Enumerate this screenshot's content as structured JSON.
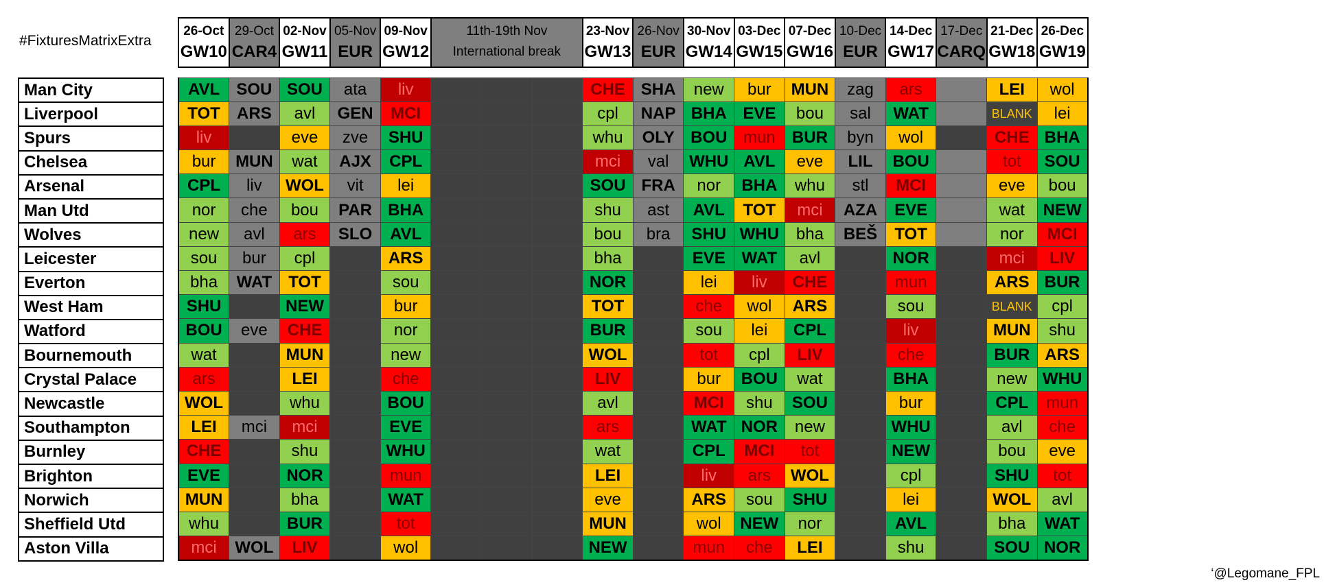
{
  "title": "#FixturesMatrixExtra",
  "credit": "‘@Legomane_FPL",
  "legend_colors": {
    "dark_green": "#00b050",
    "light_green": "#92d050",
    "yellow": "#ffc000",
    "red": "#ff0000",
    "dark_red": "#c00000",
    "grey": "#7f7f7f",
    "dark_grey": "#404040"
  },
  "columns": [
    {
      "date": "26-Oct",
      "gw": "GW10",
      "kind": "gw"
    },
    {
      "date": "29-Oct",
      "gw": "CAR4",
      "kind": "cup"
    },
    {
      "date": "02-Nov",
      "gw": "GW11",
      "kind": "gw"
    },
    {
      "date": "05-Nov",
      "gw": "EUR",
      "kind": "cup"
    },
    {
      "date": "09-Nov",
      "gw": "GW12",
      "kind": "gw"
    },
    {
      "date": "11th-19th Nov",
      "gw": "International break",
      "kind": "break"
    },
    {
      "date": "23-Nov",
      "gw": "GW13",
      "kind": "gw"
    },
    {
      "date": "26-Nov",
      "gw": "EUR",
      "kind": "cup"
    },
    {
      "date": "30-Nov",
      "gw": "GW14",
      "kind": "gw"
    },
    {
      "date": "03-Dec",
      "gw": "GW15",
      "kind": "gw"
    },
    {
      "date": "07-Dec",
      "gw": "GW16",
      "kind": "gw"
    },
    {
      "date": "10-Dec",
      "gw": "EUR",
      "kind": "cup"
    },
    {
      "date": "14-Dec",
      "gw": "GW17",
      "kind": "gw"
    },
    {
      "date": "17-Dec",
      "gw": "CARQ",
      "kind": "cup"
    },
    {
      "date": "21-Dec",
      "gw": "GW18",
      "kind": "gw"
    },
    {
      "date": "26-Dec",
      "gw": "GW19",
      "kind": "gw"
    }
  ],
  "teams": [
    {
      "name": "Man City",
      "cells": [
        [
          "AVL",
          "dg"
        ],
        [
          "SOU",
          "gr"
        ],
        [
          "SOU",
          "dg"
        ],
        [
          "ata",
          "gr"
        ],
        [
          "liv",
          "dr"
        ],
        [
          "LEI",
          "yl"
        ],
        [
          "wol",
          "yl"
        ],
        [
          "CHE",
          "rd"
        ],
        [
          "SHA",
          "gr"
        ],
        [
          "new",
          "lg"
        ],
        [
          "bur",
          "yl"
        ],
        [
          "MUN",
          "yl"
        ],
        [
          "zag",
          "gr"
        ],
        [
          "ars",
          "rd"
        ],
        [
          "",
          "gr"
        ]
      ]
    },
    {
      "name": "Liverpool",
      "cells": [
        [
          "TOT",
          "yl"
        ],
        [
          "ARS",
          "gr"
        ],
        [
          "avl",
          "lg"
        ],
        [
          "GEN",
          "gr"
        ],
        [
          "MCI",
          "rd"
        ],
        [
          "BLANK",
          "bl"
        ],
        [
          "lei",
          "yl"
        ],
        [
          "cpl",
          "lg"
        ],
        [
          "NAP",
          "gr"
        ],
        [
          "BHA",
          "dg"
        ],
        [
          "EVE",
          "dg"
        ],
        [
          "bou",
          "lg"
        ],
        [
          "sal",
          "gr"
        ],
        [
          "WAT",
          "dg"
        ],
        [
          "",
          "gr"
        ]
      ]
    },
    {
      "name": "Spurs",
      "cells": [
        [
          "liv",
          "dr"
        ],
        [
          "",
          "dk"
        ],
        [
          "eve",
          "yl"
        ],
        [
          "zve",
          "gr"
        ],
        [
          "SHU",
          "dg"
        ],
        [
          "CHE",
          "rd"
        ],
        [
          "BHA",
          "dg"
        ],
        [
          "whu",
          "lg"
        ],
        [
          "OLY",
          "gr"
        ],
        [
          "BOU",
          "dg"
        ],
        [
          "mun",
          "rd"
        ],
        [
          "BUR",
          "dg"
        ],
        [
          "byn",
          "gr"
        ],
        [
          "wol",
          "yl"
        ],
        [
          "",
          "dk"
        ]
      ]
    },
    {
      "name": "Chelsea",
      "cells": [
        [
          "bur",
          "yl"
        ],
        [
          "MUN",
          "gr"
        ],
        [
          "wat",
          "lg"
        ],
        [
          "AJX",
          "gr"
        ],
        [
          "CPL",
          "dg"
        ],
        [
          "tot",
          "rd"
        ],
        [
          "SOU",
          "dg"
        ],
        [
          "mci",
          "dr"
        ],
        [
          "val",
          "gr"
        ],
        [
          "WHU",
          "dg"
        ],
        [
          "AVL",
          "dg"
        ],
        [
          "eve",
          "yl"
        ],
        [
          "LIL",
          "gr"
        ],
        [
          "BOU",
          "dg"
        ],
        [
          "",
          "gr"
        ]
      ]
    },
    {
      "name": "Arsenal",
      "cells": [
        [
          "CPL",
          "dg"
        ],
        [
          "liv",
          "gr"
        ],
        [
          "WOL",
          "yl"
        ],
        [
          "vit",
          "gr"
        ],
        [
          "lei",
          "yl"
        ],
        [
          "eve",
          "yl"
        ],
        [
          "bou",
          "lg"
        ],
        [
          "SOU",
          "dg"
        ],
        [
          "FRA",
          "gr"
        ],
        [
          "nor",
          "lg"
        ],
        [
          "BHA",
          "dg"
        ],
        [
          "whu",
          "lg"
        ],
        [
          "stl",
          "gr"
        ],
        [
          "MCI",
          "rd"
        ],
        [
          "",
          "gr"
        ]
      ]
    },
    {
      "name": "Man Utd",
      "cells": [
        [
          "nor",
          "lg"
        ],
        [
          "che",
          "gr"
        ],
        [
          "bou",
          "lg"
        ],
        [
          "PAR",
          "gr"
        ],
        [
          "BHA",
          "dg"
        ],
        [
          "wat",
          "lg"
        ],
        [
          "NEW",
          "dg"
        ],
        [
          "shu",
          "lg"
        ],
        [
          "ast",
          "gr"
        ],
        [
          "AVL",
          "dg"
        ],
        [
          "TOT",
          "yl"
        ],
        [
          "mci",
          "dr"
        ],
        [
          "AZA",
          "gr"
        ],
        [
          "EVE",
          "dg"
        ],
        [
          "",
          "gr"
        ]
      ]
    },
    {
      "name": "Wolves",
      "cells": [
        [
          "new",
          "lg"
        ],
        [
          "avl",
          "gr"
        ],
        [
          "ars",
          "rd"
        ],
        [
          "SLO",
          "gr"
        ],
        [
          "AVL",
          "dg"
        ],
        [
          "nor",
          "lg"
        ],
        [
          "MCI",
          "rd"
        ],
        [
          "bou",
          "lg"
        ],
        [
          "bra",
          "gr"
        ],
        [
          "SHU",
          "dg"
        ],
        [
          "WHU",
          "dg"
        ],
        [
          "bha",
          "lg"
        ],
        [
          "BEŠ",
          "gr"
        ],
        [
          "TOT",
          "yl"
        ],
        [
          "",
          "gr"
        ]
      ]
    },
    {
      "name": "Leicester",
      "cells": [
        [
          "sou",
          "lg"
        ],
        [
          "bur",
          "gr"
        ],
        [
          "cpl",
          "lg"
        ],
        [
          "",
          "dk"
        ],
        [
          "ARS",
          "yl"
        ],
        [
          "mci",
          "dr"
        ],
        [
          "LIV",
          "rd"
        ],
        [
          "bha",
          "lg"
        ],
        [
          "",
          "dk"
        ],
        [
          "EVE",
          "dg"
        ],
        [
          "WAT",
          "dg"
        ],
        [
          "avl",
          "lg"
        ],
        [
          "",
          "dk"
        ],
        [
          "NOR",
          "dg"
        ],
        [
          "",
          "dk"
        ]
      ]
    },
    {
      "name": "Everton",
      "cells": [
        [
          "bha",
          "lg"
        ],
        [
          "WAT",
          "gr"
        ],
        [
          "TOT",
          "yl"
        ],
        [
          "",
          "dk"
        ],
        [
          "sou",
          "lg"
        ],
        [
          "ARS",
          "yl"
        ],
        [
          "BUR",
          "dg"
        ],
        [
          "NOR",
          "dg"
        ],
        [
          "",
          "dk"
        ],
        [
          "lei",
          "yl"
        ],
        [
          "liv",
          "dr"
        ],
        [
          "CHE",
          "rd"
        ],
        [
          "",
          "dk"
        ],
        [
          "mun",
          "rd"
        ],
        [
          "",
          "dk"
        ]
      ]
    },
    {
      "name": "West Ham",
      "cells": [
        [
          "SHU",
          "dg"
        ],
        [
          "",
          "dk"
        ],
        [
          "NEW",
          "dg"
        ],
        [
          "",
          "dk"
        ],
        [
          "bur",
          "yl"
        ],
        [
          "BLANK",
          "bl"
        ],
        [
          "cpl",
          "lg"
        ],
        [
          "TOT",
          "yl"
        ],
        [
          "",
          "dk"
        ],
        [
          "che",
          "rd"
        ],
        [
          "wol",
          "yl"
        ],
        [
          "ARS",
          "yl"
        ],
        [
          "",
          "dk"
        ],
        [
          "sou",
          "lg"
        ],
        [
          "",
          "dk"
        ]
      ]
    },
    {
      "name": "Watford",
      "cells": [
        [
          "BOU",
          "dg"
        ],
        [
          "eve",
          "gr"
        ],
        [
          "CHE",
          "rd"
        ],
        [
          "",
          "dk"
        ],
        [
          "nor",
          "lg"
        ],
        [
          "MUN",
          "yl"
        ],
        [
          "shu",
          "lg"
        ],
        [
          "BUR",
          "dg"
        ],
        [
          "",
          "dk"
        ],
        [
          "sou",
          "lg"
        ],
        [
          "lei",
          "yl"
        ],
        [
          "CPL",
          "dg"
        ],
        [
          "",
          "dk"
        ],
        [
          "liv",
          "dr"
        ],
        [
          "",
          "dk"
        ]
      ]
    },
    {
      "name": "Bournemouth",
      "cells": [
        [
          "wat",
          "lg"
        ],
        [
          "",
          "dk"
        ],
        [
          "MUN",
          "yl"
        ],
        [
          "",
          "dk"
        ],
        [
          "new",
          "lg"
        ],
        [
          "BUR",
          "dg"
        ],
        [
          "ARS",
          "yl"
        ],
        [
          "WOL",
          "yl"
        ],
        [
          "",
          "dk"
        ],
        [
          "tot",
          "rd"
        ],
        [
          "cpl",
          "lg"
        ],
        [
          "LIV",
          "rd"
        ],
        [
          "",
          "dk"
        ],
        [
          "che",
          "rd"
        ],
        [
          "",
          "dk"
        ]
      ]
    },
    {
      "name": "Crystal Palace",
      "cells": [
        [
          "ars",
          "rd"
        ],
        [
          "",
          "dk"
        ],
        [
          "LEI",
          "yl"
        ],
        [
          "",
          "dk"
        ],
        [
          "che",
          "rd"
        ],
        [
          "new",
          "lg"
        ],
        [
          "WHU",
          "dg"
        ],
        [
          "LIV",
          "rd"
        ],
        [
          "",
          "dk"
        ],
        [
          "bur",
          "yl"
        ],
        [
          "BOU",
          "dg"
        ],
        [
          "wat",
          "lg"
        ],
        [
          "",
          "dk"
        ],
        [
          "BHA",
          "dg"
        ],
        [
          "",
          "dk"
        ]
      ]
    },
    {
      "name": "Newcastle",
      "cells": [
        [
          "WOL",
          "yl"
        ],
        [
          "",
          "dk"
        ],
        [
          "whu",
          "lg"
        ],
        [
          "",
          "dk"
        ],
        [
          "BOU",
          "dg"
        ],
        [
          "CPL",
          "dg"
        ],
        [
          "mun",
          "rd"
        ],
        [
          "avl",
          "lg"
        ],
        [
          "",
          "dk"
        ],
        [
          "MCI",
          "rd"
        ],
        [
          "shu",
          "lg"
        ],
        [
          "SOU",
          "dg"
        ],
        [
          "",
          "dk"
        ],
        [
          "bur",
          "yl"
        ],
        [
          "",
          "dk"
        ]
      ]
    },
    {
      "name": "Southampton",
      "cells": [
        [
          "LEI",
          "yl"
        ],
        [
          "mci",
          "gr"
        ],
        [
          "mci",
          "dr"
        ],
        [
          "",
          "dk"
        ],
        [
          "EVE",
          "dg"
        ],
        [
          "avl",
          "lg"
        ],
        [
          "che",
          "rd"
        ],
        [
          "ars",
          "rd"
        ],
        [
          "",
          "dk"
        ],
        [
          "WAT",
          "dg"
        ],
        [
          "NOR",
          "dg"
        ],
        [
          "new",
          "lg"
        ],
        [
          "",
          "dk"
        ],
        [
          "WHU",
          "dg"
        ],
        [
          "",
          "dk"
        ]
      ]
    },
    {
      "name": "Burnley",
      "cells": [
        [
          "CHE",
          "rd"
        ],
        [
          "",
          "dk"
        ],
        [
          "shu",
          "lg"
        ],
        [
          "",
          "dk"
        ],
        [
          "WHU",
          "dg"
        ],
        [
          "bou",
          "lg"
        ],
        [
          "eve",
          "yl"
        ],
        [
          "wat",
          "lg"
        ],
        [
          "",
          "dk"
        ],
        [
          "CPL",
          "dg"
        ],
        [
          "MCI",
          "rd"
        ],
        [
          "tot",
          "rd"
        ],
        [
          "",
          "dk"
        ],
        [
          "NEW",
          "dg"
        ],
        [
          "",
          "dk"
        ]
      ]
    },
    {
      "name": "Brighton",
      "cells": [
        [
          "EVE",
          "dg"
        ],
        [
          "",
          "dk"
        ],
        [
          "NOR",
          "dg"
        ],
        [
          "",
          "dk"
        ],
        [
          "mun",
          "rd"
        ],
        [
          "SHU",
          "dg"
        ],
        [
          "tot",
          "rd"
        ],
        [
          "LEI",
          "yl"
        ],
        [
          "",
          "dk"
        ],
        [
          "liv",
          "dr"
        ],
        [
          "ars",
          "rd"
        ],
        [
          "WOL",
          "yl"
        ],
        [
          "",
          "dk"
        ],
        [
          "cpl",
          "lg"
        ],
        [
          "",
          "dk"
        ]
      ]
    },
    {
      "name": "Norwich",
      "cells": [
        [
          "MUN",
          "yl"
        ],
        [
          "",
          "dk"
        ],
        [
          "bha",
          "lg"
        ],
        [
          "",
          "dk"
        ],
        [
          "WAT",
          "dg"
        ],
        [
          "WOL",
          "yl"
        ],
        [
          "avl",
          "lg"
        ],
        [
          "eve",
          "yl"
        ],
        [
          "",
          "dk"
        ],
        [
          "ARS",
          "yl"
        ],
        [
          "sou",
          "lg"
        ],
        [
          "SHU",
          "dg"
        ],
        [
          "",
          "dk"
        ],
        [
          "lei",
          "yl"
        ],
        [
          "",
          "dk"
        ]
      ]
    },
    {
      "name": "Sheffield Utd",
      "cells": [
        [
          "whu",
          "lg"
        ],
        [
          "",
          "dk"
        ],
        [
          "BUR",
          "dg"
        ],
        [
          "",
          "dk"
        ],
        [
          "tot",
          "rd"
        ],
        [
          "bha",
          "lg"
        ],
        [
          "WAT",
          "dg"
        ],
        [
          "MUN",
          "yl"
        ],
        [
          "",
          "dk"
        ],
        [
          "wol",
          "yl"
        ],
        [
          "NEW",
          "dg"
        ],
        [
          "nor",
          "lg"
        ],
        [
          "",
          "dk"
        ],
        [
          "AVL",
          "dg"
        ],
        [
          "",
          "dk"
        ]
      ]
    },
    {
      "name": "Aston Villa",
      "cells": [
        [
          "mci",
          "dr"
        ],
        [
          "WOL",
          "gr"
        ],
        [
          "LIV",
          "rd"
        ],
        [
          "",
          "dk"
        ],
        [
          "wol",
          "yl"
        ],
        [
          "SOU",
          "dg"
        ],
        [
          "NOR",
          "dg"
        ],
        [
          "NEW",
          "dg"
        ],
        [
          "",
          "dk"
        ],
        [
          "mun",
          "rd"
        ],
        [
          "che",
          "rd"
        ],
        [
          "LEI",
          "yl"
        ],
        [
          "",
          "dk"
        ],
        [
          "shu",
          "lg"
        ],
        [
          "",
          "dk"
        ]
      ]
    }
  ]
}
